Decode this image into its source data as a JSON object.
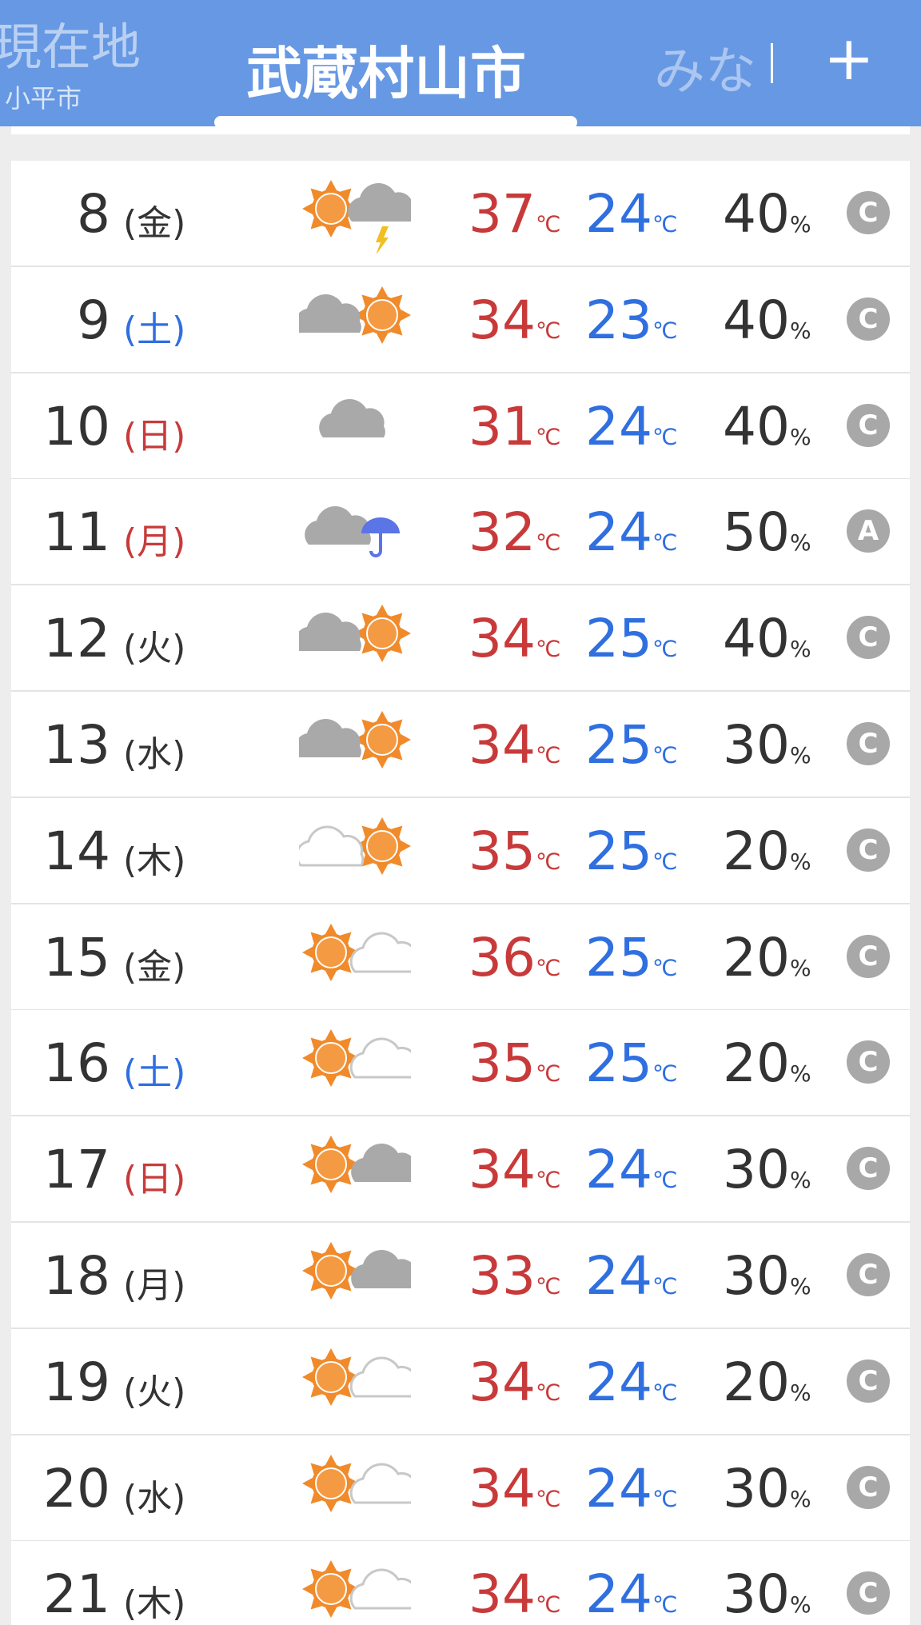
{
  "header": {
    "tabs": [
      {
        "label": "現在地",
        "sub": "小平市"
      },
      {
        "label": "武蔵村山市"
      },
      {
        "label": "みな"
      }
    ],
    "add": "+"
  },
  "units": {
    "temp": "℃",
    "pop": "%"
  },
  "rows": [
    {
      "day": 8,
      "weekday": "(金)",
      "weekday_color": "#333333",
      "high": 37,
      "low": 24,
      "pop": 40,
      "rank": "C"
    },
    {
      "day": 9,
      "weekday": "(土)",
      "weekday_color": "#2f6fe0",
      "high": 34,
      "low": 23,
      "pop": 40,
      "rank": "C"
    },
    {
      "day": 10,
      "weekday": "(日)",
      "weekday_color": "#c83a3a",
      "high": 31,
      "low": 24,
      "pop": 40,
      "rank": "C"
    },
    {
      "day": 11,
      "weekday": "(月)",
      "weekday_color": "#c83a3a",
      "high": 32,
      "low": 24,
      "pop": 50,
      "rank": "A"
    },
    {
      "day": 12,
      "weekday": "(火)",
      "weekday_color": "#333333",
      "high": 34,
      "low": 25,
      "pop": 40,
      "rank": "C"
    },
    {
      "day": 13,
      "weekday": "(水)",
      "weekday_color": "#333333",
      "high": 34,
      "low": 25,
      "pop": 30,
      "rank": "C"
    },
    {
      "day": 14,
      "weekday": "(木)",
      "weekday_color": "#333333",
      "high": 35,
      "low": 25,
      "pop": 20,
      "rank": "C"
    },
    {
      "day": 15,
      "weekday": "(金)",
      "weekday_color": "#333333",
      "high": 36,
      "low": 25,
      "pop": 20,
      "rank": "C"
    },
    {
      "day": 16,
      "weekday": "(土)",
      "weekday_color": "#2f6fe0",
      "high": 35,
      "low": 25,
      "pop": 20,
      "rank": "C"
    },
    {
      "day": 17,
      "weekday": "(日)",
      "weekday_color": "#c83a3a",
      "high": 34,
      "low": 24,
      "pop": 30,
      "rank": "C"
    },
    {
      "day": 18,
      "weekday": "(月)",
      "weekday_color": "#333333",
      "high": 33,
      "low": 24,
      "pop": 30,
      "rank": "C"
    },
    {
      "day": 19,
      "weekday": "(火)",
      "weekday_color": "#333333",
      "high": 34,
      "low": 24,
      "pop": 20,
      "rank": "C"
    },
    {
      "day": 20,
      "weekday": "(水)",
      "weekday_color": "#333333",
      "high": 34,
      "low": 24,
      "pop": 30,
      "rank": "C"
    },
    {
      "day": 21,
      "weekday": "(木)",
      "weekday_color": "#333333",
      "high": 34,
      "low": 24,
      "pop": 30,
      "rank": "C"
    }
  ]
}
